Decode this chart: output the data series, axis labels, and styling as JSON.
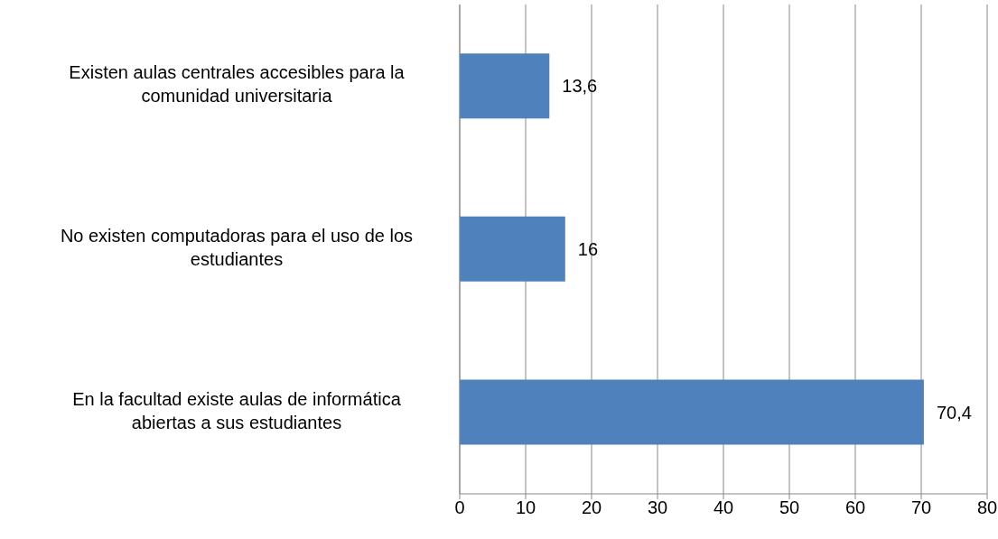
{
  "chart_data": {
    "type": "bar",
    "orientation": "horizontal",
    "categories": [
      "Existen aulas centrales accesibles para la comunidad universitaria",
      "No existen computadoras para el uso de los estudiantes",
      "En la facultad existe aulas de informática abiertas a sus estudiantes"
    ],
    "values": [
      13.6,
      16,
      70.4
    ],
    "value_labels": [
      "13,6",
      "16",
      "70,4"
    ],
    "color": "#4f81bd",
    "xlim": [
      0,
      80
    ],
    "xticks": [
      0,
      10,
      20,
      30,
      40,
      50,
      60,
      70,
      80
    ],
    "grid": "x",
    "legend": false
  }
}
